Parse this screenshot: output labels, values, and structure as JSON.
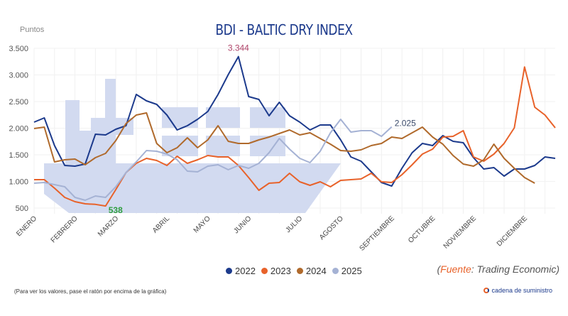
{
  "chart_data": {
    "type": "line",
    "title": "BDI - BALTIC DRY INDEX",
    "ylabel": "Puntos",
    "xlabel": "",
    "ylim": [
      500,
      3500
    ],
    "yticks": [
      500,
      1000,
      1500,
      2000,
      2500,
      3000,
      3500
    ],
    "ytick_labels": [
      "500",
      "1.000",
      "1.500",
      "2.000",
      "2.500",
      "3.000",
      "3.500"
    ],
    "points_per_year": 52,
    "month_labels": [
      "ENERO",
      "FEBRERO",
      "MARZO",
      "ABRIL",
      "MAYO",
      "JUNIO",
      "JULIO",
      "AGOSTO",
      "SEPTIEMBRE",
      "OCTUBRE",
      "NOVIEMBRE",
      "DICIEMBRE"
    ],
    "month_start_index": [
      0,
      4,
      8,
      13,
      17,
      21,
      26,
      30,
      35,
      39,
      43,
      48
    ],
    "grid": true,
    "legend_position": "bottom",
    "series": [
      {
        "name": "2022",
        "color": "#1c3a8c",
        "values": [
          2113,
          2193,
          1673,
          1300,
          1287,
          1327,
          1887,
          1873,
          1980,
          2047,
          2633,
          2513,
          2447,
          2247,
          1967,
          2047,
          2167,
          2313,
          2633,
          3007,
          3344,
          2593,
          2540,
          2233,
          2487,
          2233,
          2113,
          1967,
          2060,
          2060,
          1780,
          1460,
          1380,
          1180,
          980,
          913,
          1247,
          1540,
          1713,
          1673,
          1860,
          1753,
          1727,
          1447,
          1233,
          1260,
          1100,
          1233,
          1233,
          1300,
          1460,
          1433
        ]
      },
      {
        "name": "2023",
        "color": "#e8622a",
        "values": [
          1033,
          1033,
          873,
          700,
          620,
          580,
          570,
          538,
          847,
          1167,
          1340,
          1433,
          1393,
          1300,
          1473,
          1340,
          1407,
          1487,
          1460,
          1460,
          1300,
          1073,
          833,
          967,
          980,
          1153,
          993,
          927,
          993,
          900,
          1020,
          1033,
          1047,
          1153,
          993,
          980,
          1127,
          1313,
          1513,
          1607,
          1833,
          1847,
          1953,
          1460,
          1380,
          1513,
          1713,
          2007,
          3150,
          2393,
          2247,
          2007
        ]
      },
      {
        "name": "2024",
        "color": "#b06a2c",
        "values": [
          1993,
          2020,
          1367,
          1407,
          1420,
          1313,
          1447,
          1527,
          1767,
          2087,
          2247,
          2287,
          1713,
          1540,
          1633,
          1820,
          1633,
          1780,
          2047,
          1753,
          1713,
          1713,
          1780,
          1833,
          1900,
          1967,
          1873,
          1913,
          1807,
          1700,
          1580,
          1567,
          1593,
          1673,
          1713,
          1833,
          1807,
          1913,
          2020,
          1833,
          1700,
          1487,
          1327,
          1287,
          1407,
          1700,
          1433,
          1247,
          1073,
          967
        ]
      },
      {
        "name": "2025",
        "color": "#a5b2d4",
        "values": [
          967,
          980,
          940,
          900,
          700,
          647,
          727,
          700,
          900,
          1167,
          1367,
          1580,
          1567,
          1513,
          1407,
          1193,
          1180,
          1287,
          1313,
          1220,
          1300,
          1247,
          1340,
          1540,
          1807,
          1607,
          1433,
          1353,
          1567,
          1913,
          2167,
          1927,
          1953,
          1953,
          1847,
          2025
        ]
      }
    ],
    "annotations": [
      {
        "text": "3.344",
        "series": "2022",
        "index": 20,
        "color": "#b0456a"
      },
      {
        "text": "538",
        "series": "2023",
        "index": 7,
        "color": "#2e9e3e"
      },
      {
        "text": "2.025",
        "series": "2025",
        "index": 35,
        "color": "#3a4a6a"
      }
    ]
  },
  "legend": {
    "items": [
      "2022",
      "2023",
      "2024",
      "2025"
    ]
  },
  "source": {
    "prefix": "(",
    "label": "Fuente",
    "text": ": Trading Economic)"
  },
  "note": "(Para ver los valores, pase el ratón por encima de la gráfica)",
  "brand": "cadena de suministro"
}
